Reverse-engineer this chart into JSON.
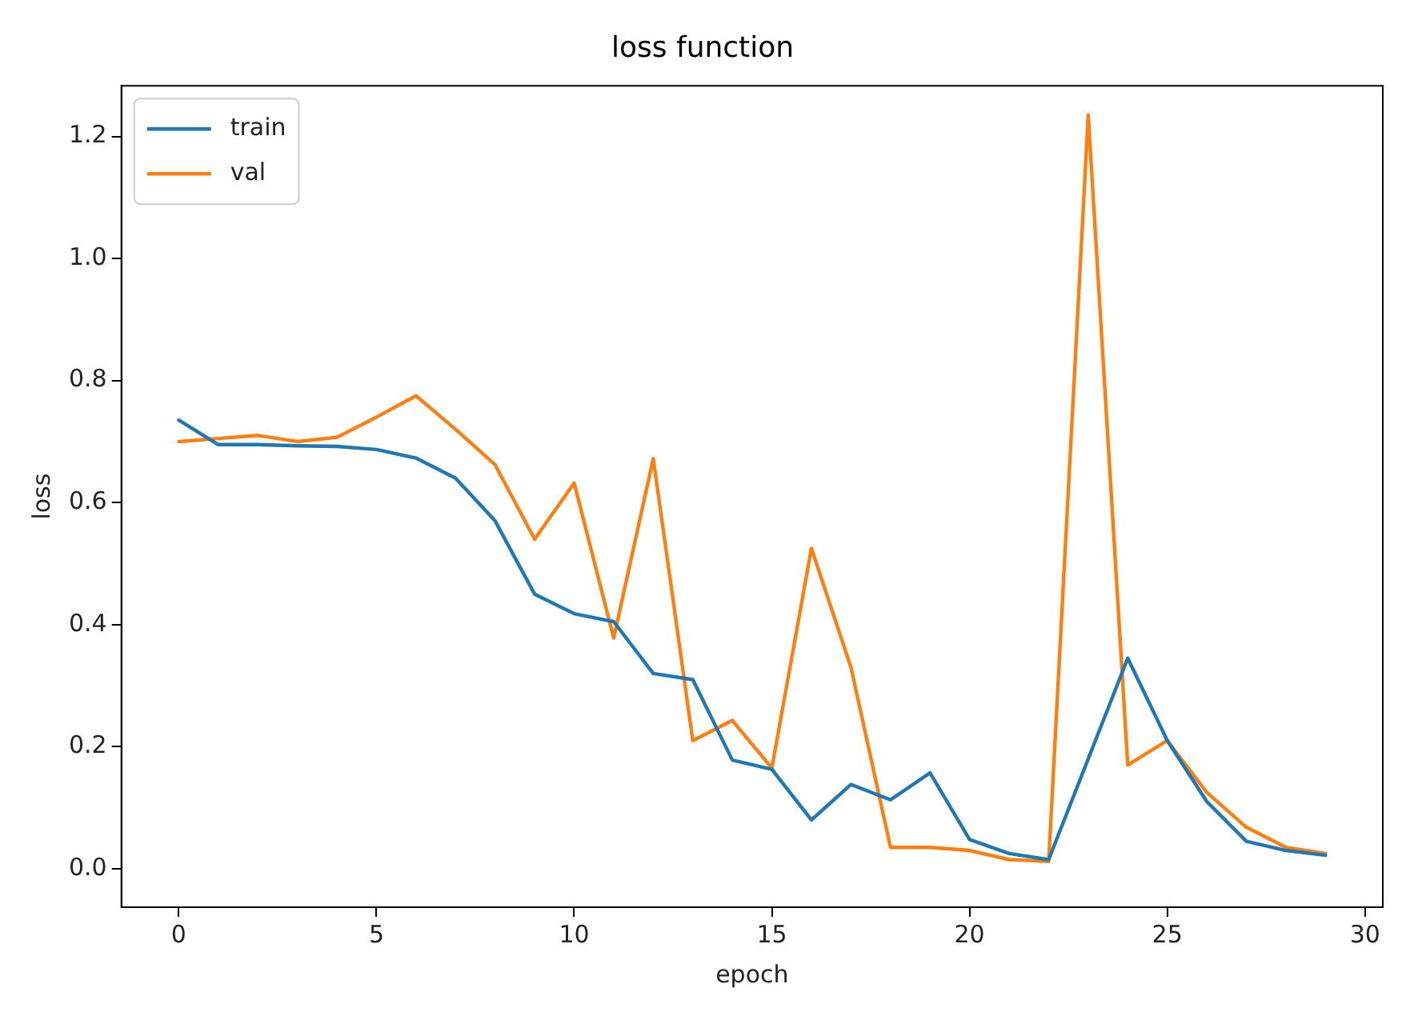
{
  "chart_data": {
    "type": "line",
    "title": "loss function",
    "xlabel": "epoch",
    "ylabel": "loss",
    "x": [
      0,
      1,
      2,
      3,
      4,
      5,
      6,
      7,
      8,
      9,
      10,
      11,
      12,
      13,
      14,
      15,
      16,
      17,
      18,
      19,
      20,
      21,
      22,
      23,
      24,
      25,
      26,
      27,
      28,
      29
    ],
    "series": [
      {
        "name": "train",
        "color": "#1f77b4",
        "values": [
          0.735,
          0.695,
          0.695,
          0.693,
          0.692,
          0.687,
          0.673,
          0.64,
          0.57,
          0.45,
          0.418,
          0.405,
          0.32,
          0.31,
          0.178,
          0.163,
          0.08,
          0.138,
          0.113,
          0.157,
          0.048,
          0.025,
          0.015,
          0.18,
          0.345,
          0.21,
          0.11,
          0.045,
          0.03,
          0.022
        ]
      },
      {
        "name": "val",
        "color": "#ff7f0e",
        "values": [
          0.7,
          0.705,
          0.71,
          0.7,
          0.707,
          0.74,
          0.775,
          0.72,
          0.662,
          0.54,
          0.632,
          0.378,
          0.672,
          0.21,
          0.243,
          0.165,
          0.525,
          0.33,
          0.035,
          0.035,
          0.03,
          0.015,
          0.012,
          1.235,
          0.17,
          0.21,
          0.125,
          0.068,
          0.035,
          0.025
        ]
      }
    ],
    "xlim": [
      -1.45,
      30.45
    ],
    "xticks": [
      0,
      5,
      10,
      15,
      20,
      25,
      30
    ],
    "ylim": [
      -0.063,
      1.283
    ],
    "yticks": [
      {
        "value": 0,
        "label": "0.0"
      },
      {
        "value": 0.2,
        "label": "0.2"
      },
      {
        "value": 0.4,
        "label": "0.4"
      },
      {
        "value": 0.6,
        "label": "0.6"
      },
      {
        "value": 0.8,
        "label": "0.8"
      },
      {
        "value": 1.0,
        "label": "1.0"
      },
      {
        "value": 1.2,
        "label": "1.2"
      }
    ],
    "grid": false,
    "legend": "top left",
    "marker": "none",
    "line_style": "solid"
  }
}
